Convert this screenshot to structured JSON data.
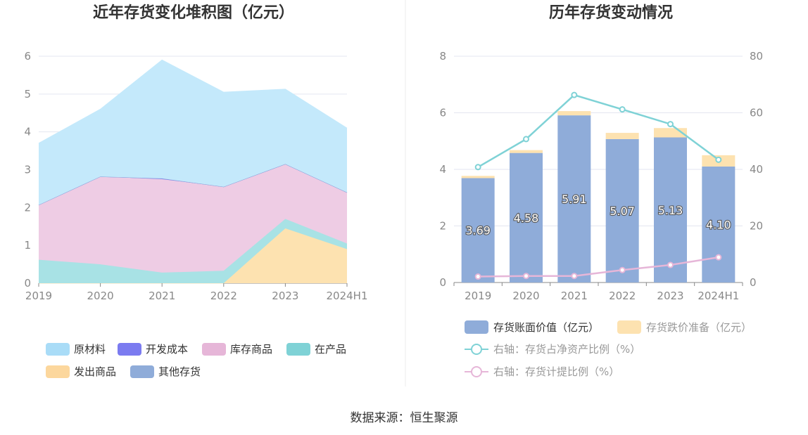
{
  "source": "数据来源：恒生聚源",
  "chart_data": [
    {
      "type": "area",
      "stacked": true,
      "title": "近年存货变化堆积图（亿元）",
      "categories": [
        "2019",
        "2020",
        "2021",
        "2022",
        "2023",
        "2024H1"
      ],
      "ylim": [
        0,
        6
      ],
      "yticks": [
        "0",
        "1",
        "2",
        "3",
        "4",
        "5",
        "6"
      ],
      "grid": true,
      "legend_position": "bottom",
      "series": [
        {
          "name": "发出商品",
          "color": "#fde2b0",
          "values": [
            0,
            0,
            0,
            0,
            1.45,
            0.9
          ]
        },
        {
          "name": "在产品",
          "color": "#a8e2e5",
          "values": [
            0.62,
            0.5,
            0.28,
            0.33,
            0.25,
            0.15
          ]
        },
        {
          "name": "库存商品",
          "color": "#eecce4",
          "values": [
            1.45,
            2.32,
            2.47,
            2.22,
            1.45,
            1.35
          ]
        },
        {
          "name": "开发成本",
          "color": "#7b7bf0",
          "values": [
            0,
            0,
            0.02,
            0,
            0,
            0
          ]
        },
        {
          "name": "其他存货",
          "color": "#8facd9",
          "values": [
            0,
            0,
            0,
            0,
            0,
            0
          ]
        },
        {
          "name": "原材料",
          "color": "#c4e9fb",
          "values": [
            1.63,
            1.78,
            3.13,
            2.5,
            1.98,
            1.7
          ]
        }
      ],
      "legend": [
        {
          "name": "原材料",
          "color": "#a9dcf7"
        },
        {
          "name": "开发成本",
          "color": "#7b7bf0"
        },
        {
          "name": "库存商品",
          "color": "#e6b6d8"
        },
        {
          "name": "在产品",
          "color": "#7fd2d6"
        },
        {
          "name": "发出商品",
          "color": "#fcd79d"
        },
        {
          "name": "其他存货",
          "color": "#8facd9"
        }
      ]
    },
    {
      "type": "bar",
      "stacked": true,
      "title": "历年存货变动情况",
      "categories": [
        "2019",
        "2020",
        "2021",
        "2022",
        "2023",
        "2024H1"
      ],
      "ylim": [
        0,
        8
      ],
      "yticks": [
        "0",
        "2",
        "4",
        "6",
        "8"
      ],
      "y2lim": [
        0,
        80
      ],
      "y2ticks": [
        "0",
        "20",
        "40",
        "60",
        "80"
      ],
      "grid": true,
      "legend_position": "bottom",
      "series": [
        {
          "name": "存货账面价值（亿元）",
          "kind": "bar",
          "axis": "left",
          "color": "#8facd9",
          "values": [
            3.69,
            4.58,
            5.91,
            5.07,
            5.13,
            4.1
          ],
          "labels": [
            "3.69",
            "4.58",
            "5.91",
            "5.07",
            "5.13",
            "4.10"
          ]
        },
        {
          "name": "存货跌价准备（亿元）",
          "kind": "bar",
          "axis": "left",
          "color": "#fde2b0",
          "values": [
            0.08,
            0.1,
            0.15,
            0.22,
            0.33,
            0.4
          ]
        },
        {
          "name": "右轴：存货占净资产比例（%）",
          "kind": "line",
          "axis": "right",
          "color": "#7fd2d6",
          "values": [
            40.8,
            50.7,
            66.3,
            61.2,
            56,
            43.4
          ]
        },
        {
          "name": "右轴：存货计提比例（%）",
          "kind": "line",
          "axis": "right",
          "color": "#e6b6d8",
          "values": [
            2.1,
            2.3,
            2.3,
            4.4,
            6.2,
            8.9
          ]
        }
      ]
    }
  ]
}
